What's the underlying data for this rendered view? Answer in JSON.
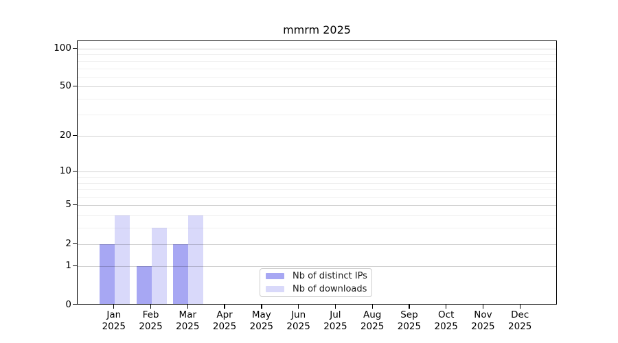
{
  "chart_data": {
    "type": "bar",
    "title": "mmrm 2025",
    "categories": [
      "Jan",
      "Feb",
      "Mar",
      "Apr",
      "May",
      "Jun",
      "Jul",
      "Aug",
      "Sep",
      "Oct",
      "Nov",
      "Dec"
    ],
    "x_tick_year": "2025",
    "series": [
      {
        "name": "Nb of distinct IPs",
        "color": "#a7a7f3",
        "values": [
          2,
          1,
          2,
          0,
          0,
          0,
          0,
          0,
          0,
          0,
          0,
          0
        ]
      },
      {
        "name": "Nb of downloads",
        "color": "#d9d9fa",
        "values": [
          4,
          3,
          4,
          0,
          0,
          0,
          0,
          0,
          0,
          0,
          0,
          0
        ]
      }
    ],
    "yscale": "log1p",
    "ylim": [
      0,
      115
    ],
    "y_major_ticks": [
      0,
      1,
      2,
      5,
      10,
      20,
      50,
      100
    ],
    "y_minor_ticks": [
      3,
      4,
      6,
      7,
      8,
      9,
      30,
      40,
      60,
      70,
      80,
      90
    ],
    "grid": "horizontal",
    "legend_position": "inside lower-center"
  },
  "colors": {
    "bar_distinct_ips": "#a7a7f3",
    "bar_downloads": "#d9d9fa",
    "grid_major": "rgba(0,0,0,0.18)",
    "grid_minor": "rgba(0,0,0,0.06)",
    "spine": "#000000",
    "background": "#ffffff",
    "text": "#000000"
  }
}
